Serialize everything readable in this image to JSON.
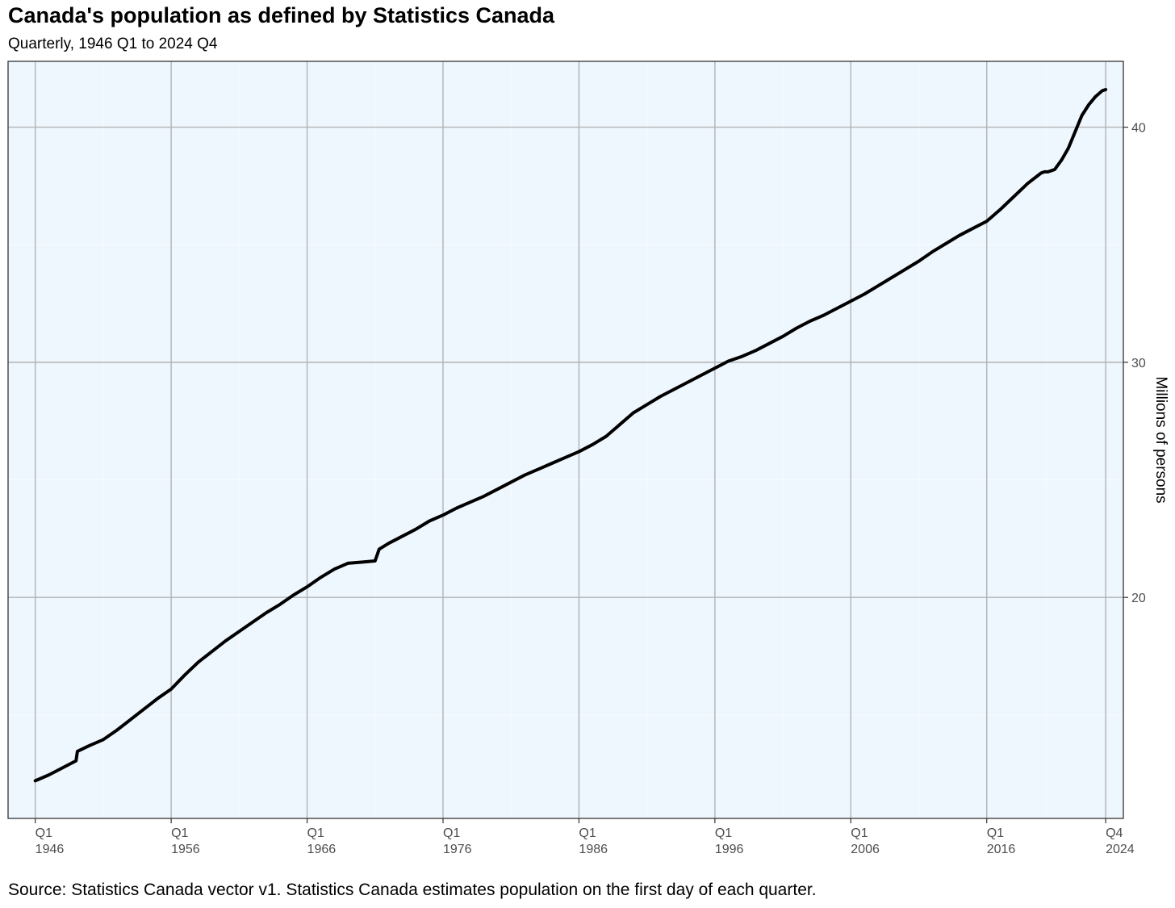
{
  "title": "Canada's population as defined by Statistics Canada",
  "subtitle": "Quarterly, 1946 Q1 to 2024 Q4",
  "caption": "Source: Statistics Canada vector v1. Statistics Canada estimates population on the first day of each quarter.",
  "colors": {
    "panel_background": "#eef6fe",
    "grid_major": "#b3b3b3",
    "grid_minor": "#f7fbff",
    "line": "#000000",
    "tick_text": "#4d4d4d"
  },
  "chart_data": {
    "type": "line",
    "ylabel": "Millions of persons",
    "y_axis_position": "right",
    "grid": true,
    "legend": "none",
    "xlim": [
      1944.0,
      2026.05
    ],
    "ylim": [
      10.6,
      42.8
    ],
    "y_ticks": [
      20,
      30,
      40
    ],
    "x_ticks": [
      {
        "x": 1946.0,
        "quarter": "Q1",
        "year": "1946"
      },
      {
        "x": 1956.0,
        "quarter": "Q1",
        "year": "1956"
      },
      {
        "x": 1966.0,
        "quarter": "Q1",
        "year": "1966"
      },
      {
        "x": 1976.0,
        "quarter": "Q1",
        "year": "1976"
      },
      {
        "x": 1986.0,
        "quarter": "Q1",
        "year": "1986"
      },
      {
        "x": 1996.0,
        "quarter": "Q1",
        "year": "1996"
      },
      {
        "x": 2006.0,
        "quarter": "Q1",
        "year": "2006"
      },
      {
        "x": 2016.0,
        "quarter": "Q1",
        "year": "2016"
      },
      {
        "x": 2024.75,
        "quarter": "Q4",
        "year": "2024"
      }
    ],
    "series": [
      {
        "x": [
          1946.0,
          1947.0,
          1948.0,
          1949.0,
          1949.1,
          1950.0,
          1951.0,
          1952.0,
          1953.0,
          1954.0,
          1955.0,
          1956.0,
          1957.0,
          1958.0,
          1959.0,
          1960.0,
          1961.0,
          1962.0,
          1963.0,
          1964.0,
          1965.0,
          1966.0,
          1967.0,
          1968.0,
          1969.0,
          1970.0,
          1971.0,
          1971.3,
          1972.0,
          1973.0,
          1974.0,
          1975.0,
          1976.0,
          1977.0,
          1978.0,
          1979.0,
          1980.0,
          1981.0,
          1982.0,
          1983.0,
          1984.0,
          1985.0,
          1986.0,
          1987.0,
          1988.0,
          1989.0,
          1990.0,
          1991.0,
          1992.0,
          1993.0,
          1994.0,
          1995.0,
          1996.0,
          1997.0,
          1998.0,
          1999.0,
          2000.0,
          2001.0,
          2002.0,
          2003.0,
          2004.0,
          2005.0,
          2006.0,
          2007.0,
          2008.0,
          2009.0,
          2010.0,
          2011.0,
          2012.0,
          2013.0,
          2014.0,
          2015.0,
          2016.0,
          2017.0,
          2018.0,
          2019.0,
          2020.0,
          2020.25,
          2020.5,
          2020.75,
          2021.0,
          2021.5,
          2022.0,
          2022.5,
          2023.0,
          2023.5,
          2024.0,
          2024.5,
          2024.75
        ],
        "y": [
          12.2,
          12.45,
          12.75,
          13.05,
          13.45,
          13.7,
          13.95,
          14.35,
          14.8,
          15.25,
          15.7,
          16.1,
          16.7,
          17.25,
          17.7,
          18.15,
          18.55,
          18.95,
          19.35,
          19.7,
          20.1,
          20.45,
          20.85,
          21.2,
          21.45,
          21.5,
          21.55,
          22.05,
          22.3,
          22.6,
          22.9,
          23.25,
          23.5,
          23.8,
          24.05,
          24.3,
          24.6,
          24.9,
          25.2,
          25.45,
          25.7,
          25.95,
          26.2,
          26.5,
          26.85,
          27.35,
          27.85,
          28.2,
          28.55,
          28.85,
          29.15,
          29.45,
          29.75,
          30.05,
          30.25,
          30.5,
          30.8,
          31.1,
          31.45,
          31.75,
          32.0,
          32.3,
          32.6,
          32.9,
          33.25,
          33.6,
          33.95,
          34.3,
          34.7,
          35.05,
          35.4,
          35.7,
          36.0,
          36.5,
          37.05,
          37.6,
          38.05,
          38.1,
          38.1,
          38.15,
          38.2,
          38.6,
          39.1,
          39.8,
          40.5,
          40.95,
          41.3,
          41.55,
          41.6
        ]
      }
    ]
  }
}
